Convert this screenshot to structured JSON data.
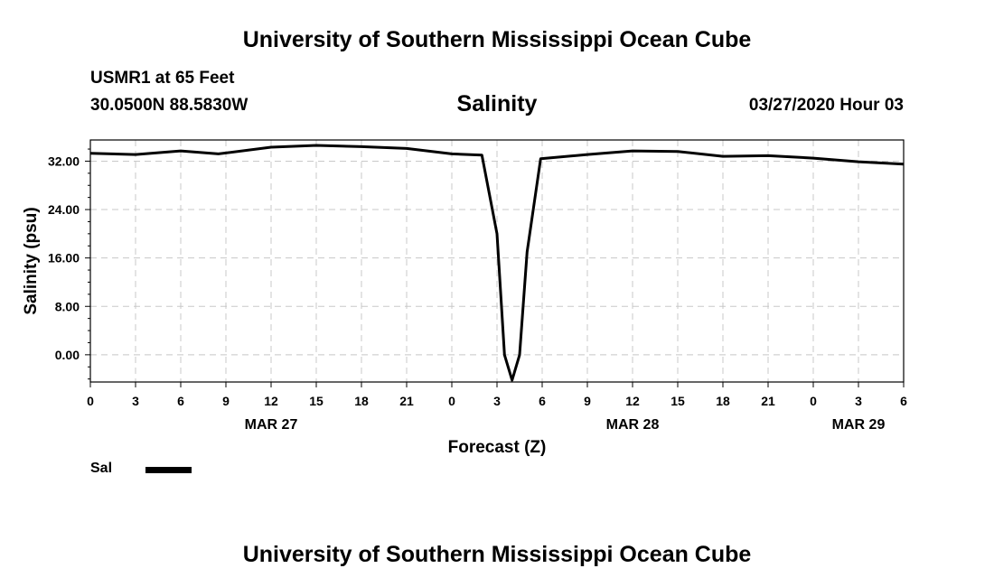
{
  "header": {
    "org_title": "University of Southern Mississippi Ocean Cube",
    "station": "USMR1 at 65 Feet",
    "coords": "30.0500N 88.5830W",
    "run_date": "03/27/2020 Hour 03"
  },
  "footer": {
    "org_title": "University of Southern Mississippi Ocean Cube"
  },
  "legend": {
    "label": "Sal",
    "color": "#000000"
  },
  "chart_data": {
    "type": "line",
    "title": "Salinity",
    "xlabel": "Forecast (Z)",
    "ylabel": "Salinity (psu)",
    "xlim": [
      0,
      54
    ],
    "ylim": [
      -4.5,
      35.5
    ],
    "x_ticks": [
      0,
      3,
      6,
      9,
      12,
      15,
      18,
      21,
      24,
      27,
      30,
      33,
      36,
      39,
      42,
      45,
      48,
      51,
      54
    ],
    "x_tick_labels": [
      "0",
      "3",
      "6",
      "9",
      "12",
      "15",
      "18",
      "21",
      "0",
      "3",
      "6",
      "9",
      "12",
      "15",
      "18",
      "21",
      "0",
      "3",
      "6"
    ],
    "y_ticks": [
      0,
      8,
      16,
      24,
      32
    ],
    "y_tick_labels": [
      "0.00",
      "8.00",
      "16.00",
      "24.00",
      "32.00"
    ],
    "date_labels": [
      {
        "x": 12,
        "label": "MAR 27"
      },
      {
        "x": 36,
        "label": "MAR 28"
      },
      {
        "x": 51,
        "label": "MAR 29"
      }
    ],
    "grid": true,
    "series": [
      {
        "name": "Sal",
        "x": [
          0,
          3,
          6,
          8.5,
          12,
          15,
          18,
          21,
          24,
          26,
          27,
          27.5,
          28,
          28.5,
          29,
          29.9,
          33,
          36,
          39,
          42,
          45,
          48,
          51,
          54
        ],
        "y": [
          33.3,
          33.1,
          33.7,
          33.2,
          34.3,
          34.6,
          34.4,
          34.1,
          33.2,
          33.0,
          20.0,
          0.0,
          -4.2,
          0.0,
          17.0,
          32.4,
          33.1,
          33.7,
          33.6,
          32.8,
          32.9,
          32.5,
          31.9,
          31.5
        ]
      }
    ]
  }
}
